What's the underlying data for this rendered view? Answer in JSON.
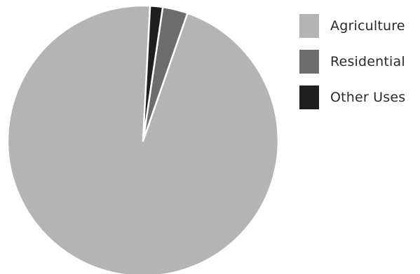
{
  "chart_data": {
    "type": "pie",
    "start_angle_deg": 3,
    "direction": "counterclockwise",
    "legend_position": "right",
    "slices": [
      {
        "label": "Agriculture",
        "value": 95.5,
        "color": "#b4b4b4"
      },
      {
        "label": "Residential",
        "value": 3.0,
        "color": "#6d6d6d"
      },
      {
        "label": "Other Uses",
        "value": 1.5,
        "color": "#1f1f1f"
      }
    ]
  }
}
